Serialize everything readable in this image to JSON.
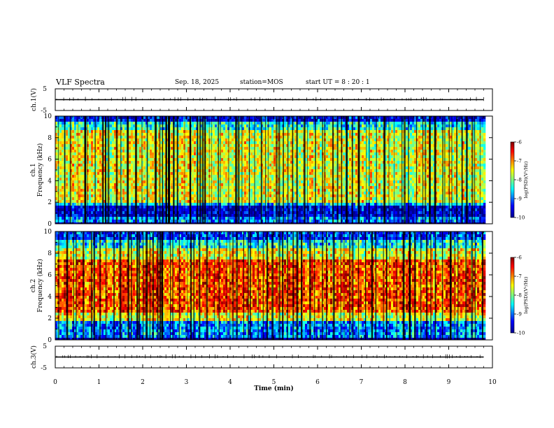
{
  "header": {
    "title": "VLF Spectra",
    "date": "Sep. 18, 2025",
    "station": "station=MOS",
    "start": "start  UT =   8 : 20 : 1"
  },
  "colors": {
    "jet_stops": [
      "#00008f",
      "#0000ff",
      "#00ffff",
      "#7fff7f",
      "#ffff00",
      "#ff0000",
      "#800000"
    ],
    "gap": "#000000"
  },
  "chart_data": [
    {
      "type": "line",
      "name": "ch1-waveform",
      "ylabel": "ch.1(V)",
      "ylim": [
        -5,
        5
      ],
      "yticks": [
        5,
        -5
      ],
      "xlim": [
        0,
        10
      ],
      "trace_value": 0,
      "trace_end": 9.8
    },
    {
      "type": "heatmap",
      "name": "ch1-spectrogram",
      "ylabel_line1": "ch.1",
      "ylabel_line2": "Frequency  (kHz)",
      "ylim": [
        0,
        10
      ],
      "yticks": [
        0,
        2,
        4,
        6,
        8,
        10
      ],
      "xlim": [
        0,
        10
      ],
      "data_end": 9.8,
      "bands": [
        {
          "from": 0,
          "to": 0.25,
          "level": -10.2
        },
        {
          "from": 0.25,
          "to": 0.7,
          "level": -8.9
        },
        {
          "from": 0.7,
          "to": 1.6,
          "level": -9.6
        },
        {
          "from": 1.6,
          "to": 2.0,
          "level": -8.6
        },
        {
          "from": 2.0,
          "to": 8.8,
          "level": -7.6
        },
        {
          "from": 8.8,
          "to": 9.5,
          "level": -8.4
        },
        {
          "from": 9.5,
          "to": 10.0,
          "level": -9.5
        }
      ],
      "colorbar": {
        "label": "log(PSD)(V²/Hz)",
        "range": [
          -10,
          -6
        ],
        "ticks": [
          -6,
          -7,
          -8,
          -9,
          -10
        ]
      }
    },
    {
      "type": "heatmap",
      "name": "ch2-spectrogram",
      "ylabel_line1": "ch.2",
      "ylabel_line2": "Frequency  (kHz)",
      "ylim": [
        0,
        10
      ],
      "yticks": [
        0,
        2,
        4,
        6,
        8,
        10
      ],
      "xlim": [
        0,
        10
      ],
      "data_end": 9.8,
      "bands": [
        {
          "from": 0,
          "to": 0.3,
          "level": -10.2
        },
        {
          "from": 0.3,
          "to": 1.8,
          "level": -8.9
        },
        {
          "from": 1.8,
          "to": 2.5,
          "level": -7.6
        },
        {
          "from": 2.5,
          "to": 7.5,
          "level": -6.8
        },
        {
          "from": 7.5,
          "to": 8.5,
          "level": -7.6
        },
        {
          "from": 8.5,
          "to": 9.3,
          "level": -8.4
        },
        {
          "from": 9.3,
          "to": 10.0,
          "level": -9.2
        }
      ],
      "colorbar": {
        "label": "log(PSD)(V²/Hz)",
        "range": [
          -10,
          -6
        ],
        "ticks": [
          -6,
          -7,
          -8,
          -9,
          -10
        ]
      }
    },
    {
      "type": "line",
      "name": "ch3-waveform",
      "ylabel": "ch.3(V)",
      "ylim": [
        -5,
        5
      ],
      "yticks": [
        5,
        -5
      ],
      "xlim": [
        0,
        10
      ],
      "trace_value": 0,
      "trace_end": 9.8
    }
  ],
  "xaxis": {
    "label": "Time  (min)",
    "ticks": [
      0,
      1,
      2,
      3,
      4,
      5,
      6,
      7,
      8,
      9,
      10
    ]
  }
}
